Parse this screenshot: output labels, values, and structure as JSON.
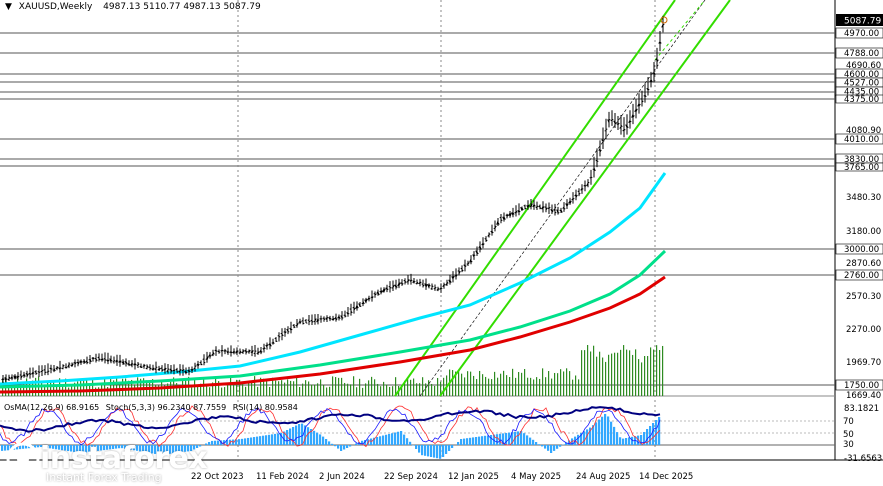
{
  "header": {
    "symbol": "XAUUSD,Weekly",
    "open": "4987.13",
    "high": "5110.77",
    "low": "4987.13",
    "close": "5087.79"
  },
  "price_axis": {
    "current_price": "5087.79",
    "current_color": "#000000",
    "level_labels": [
      "4970.00",
      "4788.00",
      "4600.00",
      "4527.00",
      "4435.00",
      "4375.00",
      "4010.00",
      "3830.00",
      "3765.00",
      "3000.00",
      "2760.00",
      "1750.00"
    ],
    "tick_labels": [
      "4690.60",
      "4080.90",
      "3480.30",
      "3180.00",
      "2870.60",
      "2570.30",
      "2270.00",
      "1969.70",
      "1669.40"
    ]
  },
  "indicator_axis": {
    "tick_labels": [
      "83.1821",
      "70",
      "50",
      "30",
      "-31.6563"
    ]
  },
  "time_axis": {
    "labels": [
      "22 Oct 2023",
      "11 Feb 2024",
      "2 Jun 2024",
      "22 Sep 2024",
      "12 Jan 2025",
      "4 May 2025",
      "24 Aug 2025",
      "14 Dec 2025"
    ]
  },
  "indicators": {
    "osma": "OsMA(12,26,9) 68.9165",
    "stoch": "Stoch(5,3,3) 96.2340 87.7559",
    "rsi": "RSI(14) 80.9584"
  },
  "watermark": {
    "brand": "instaforex",
    "tagline": "Instant Forex Trading"
  },
  "colors": {
    "price_bars": "#000000",
    "ema_cyan": "#00e5ff",
    "ema_green": "#00e08a",
    "ema_red": "#e00000",
    "channel": "#33dd00",
    "volume": "#2e8b22",
    "osma": "#33a8ff",
    "stoch_main": "#ff3030",
    "stoch_signal": "#1a1aff",
    "rsi": "#000080"
  }
}
